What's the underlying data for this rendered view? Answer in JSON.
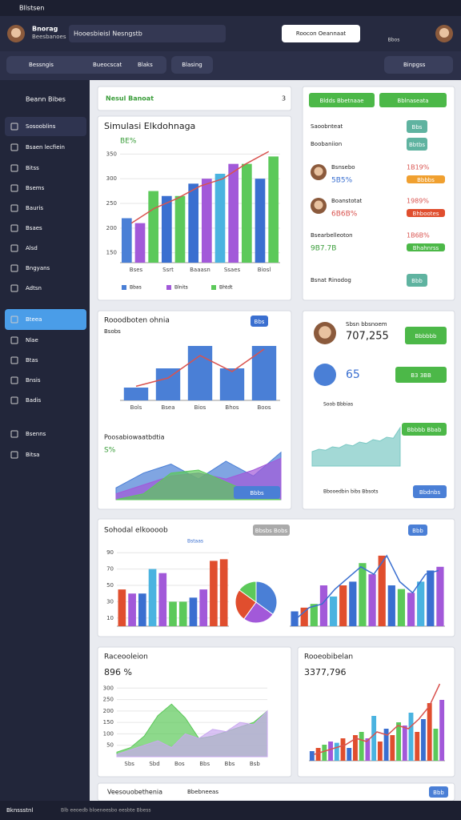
{
  "window": {
    "title": "Bllstsen"
  },
  "header": {
    "user": "Bnorag",
    "user_sub": "Beesbanoes",
    "search": "Hooesbieisl Nesngstb",
    "button": "Roocon Oeannaat",
    "icon_label": "Bbos"
  },
  "toolbar": {
    "tabs": [
      "Bessngis",
      "Bueocscat",
      "Blaks",
      "Blasing"
    ],
    "action": "Binpgss"
  },
  "sidebar": {
    "heading": "Beann Bibes",
    "items": [
      "Sosooblins",
      "Bsaen lecfiein",
      "Bitss",
      "Bsems",
      "Bauris",
      "Bsaes",
      "Alsd",
      "Bngyans",
      "Adtsn",
      "Bteea",
      "Nlae",
      "Btas",
      "Bnsis",
      "Badis",
      "Bsenns",
      "Bitsa"
    ]
  },
  "summary": {
    "title": "Nesul Banoat",
    "count": "3"
  },
  "sim": {
    "title": "Simulasi Elkdohnaga",
    "stat": "BE%",
    "legend": [
      "Bbas",
      "Blnits",
      "Bhtdt"
    ],
    "chart": {
      "type": "bar",
      "values": [
        220,
        210,
        275,
        265,
        265,
        290,
        300,
        310,
        330,
        330,
        300,
        345
      ],
      "colors": [
        "#4a7fd6",
        "#a259d9",
        "#5cc95a",
        "#3a6fd0",
        "#5cc95a",
        "#3a6fd0",
        "#a259d9",
        "#4ab3e0",
        "#a259d9",
        "#5cc95a",
        "#3a6fd0",
        "#5cc95a"
      ],
      "line": [
        210,
        240,
        260,
        285,
        300,
        330,
        355
      ],
      "line_color": "#d9534f",
      "xlabels": [
        "Bses",
        "Ssrt",
        "Baaasn",
        "Ssaes",
        "Biosl"
      ],
      "ylim": [
        130,
        370
      ],
      "yticks": [
        150,
        200,
        250,
        300,
        350
      ]
    }
  },
  "list": {
    "buttons": [
      "Bldds Bbetnaae",
      "Bblnaseata"
    ],
    "rows": [
      {
        "title": "Saoobnteat",
        "tag": "Bbs"
      },
      {
        "title": "Boobaniion",
        "tag": "Bbtbs"
      },
      {
        "title": "Bsnsebo",
        "sub": "5B5%",
        "value": "1B19%",
        "tag": "Bbbbs"
      },
      {
        "title": "Boanstotat",
        "sub": "6B6B%",
        "value": "1989%",
        "tag": "Bhbootes"
      },
      {
        "title": "Bsearbelleoton",
        "sub": "9B7.7B",
        "value": "1B6B%",
        "tag": "Bhahnrss"
      },
      {
        "title": "Bsnat Rinodog",
        "tag": "Bbb"
      }
    ]
  },
  "combo": {
    "title": "Rooodboten ohnia",
    "sub": "Bsobs",
    "button": "Bbs",
    "chart": {
      "type": "bar",
      "values": [
        20,
        50,
        85,
        50,
        85
      ],
      "colors": [
        "#4a7fd6"
      ],
      "line": [
        22,
        35,
        70,
        45,
        80
      ],
      "line_color": "#d9534f",
      "xlabels": [
        "Bols",
        "Bsea",
        "Bios",
        "Bhos",
        "Boos"
      ],
      "ylim": [
        0,
        100
      ]
    },
    "area_title": "Poosabiowaatbdtia",
    "area_stat": "S%",
    "area_button": "Bbbs",
    "area": {
      "type": "area",
      "series": [
        {
          "color": "#4a7fd6",
          "values": [
            20,
            45,
            60,
            35,
            65,
            40,
            80
          ]
        },
        {
          "color": "#a259d9",
          "values": [
            10,
            25,
            40,
            45,
            35,
            50,
            70
          ]
        },
        {
          "color": "#5cc95a",
          "values": [
            0,
            10,
            45,
            50,
            30,
            10,
            0
          ]
        }
      ],
      "ylim": [
        0,
        100
      ]
    }
  },
  "profile": {
    "name": "Sbsn bbsnoem",
    "value": "707,255",
    "button": "Bbbbbb",
    "count": "65",
    "badge": "B3 3BB",
    "caption": "Soob Bbbias",
    "spark_button": "Bbbbb Bbab",
    "note": "Bbooedbin bibs Bbsots",
    "note_button": "Bbdnbs",
    "spark": {
      "type": "area",
      "series": [
        {
          "color": "#7cc9c4",
          "values": [
            30,
            35,
            33,
            40,
            38,
            45,
            42,
            50,
            47,
            55,
            52,
            60,
            58,
            80
          ]
        }
      ],
      "ylim": [
        0,
        100
      ]
    }
  },
  "social": {
    "title": "Sohodal elkoooob",
    "buttons": [
      "Bbsbs Bobs",
      "Bbb"
    ],
    "label": "Bstaas",
    "bars": {
      "type": "bar",
      "values": [
        45,
        40,
        40,
        70,
        65,
        30,
        30,
        35,
        45,
        80,
        82
      ],
      "colors": [
        "#e04e2e",
        "#a259d9",
        "#3a6fd0",
        "#4ab3e0",
        "#a259d9",
        "#5cc95a",
        "#5cc95a",
        "#3a6fd0",
        "#a259d9",
        "#e04e2e",
        "#e04e2e"
      ],
      "ylim": [
        0,
        100
      ],
      "yticks": [
        10,
        30,
        50,
        70,
        90
      ]
    },
    "pie": {
      "type": "pie",
      "values": [
        35,
        25,
        25,
        15
      ],
      "colors": [
        "#4a7fd6",
        "#a259d9",
        "#e04e2e",
        "#5cc95a"
      ]
    },
    "bars2": {
      "type": "bar",
      "values": [
        20,
        25,
        30,
        55,
        40,
        55,
        60,
        85,
        70,
        95,
        55,
        50,
        45,
        60,
        75,
        80
      ],
      "colors": [
        "#3a6fd0",
        "#e04e2e",
        "#5cc95a",
        "#a259d9",
        "#4ab3e0",
        "#e04e2e",
        "#3a6fd0",
        "#5cc95a",
        "#a259d9",
        "#e04e2e",
        "#3a6fd0",
        "#5cc95a",
        "#a259d9",
        "#4ab3e0",
        "#3a6fd0",
        "#a259d9"
      ],
      "line": [
        10,
        25,
        30,
        50,
        65,
        80,
        70,
        95,
        60,
        45,
        70,
        75
      ],
      "line_color": "#3a6fd0",
      "ylim": [
        0,
        110
      ]
    }
  },
  "growth": {
    "title": "Raceooleion",
    "stat": "896 %",
    "chart": {
      "type": "area",
      "series": [
        {
          "color": "#5cc95a",
          "values": [
            20,
            40,
            90,
            180,
            230,
            170,
            80,
            90,
            110,
            130,
            150,
            200
          ]
        },
        {
          "color": "#c9a8ef",
          "values": [
            10,
            30,
            50,
            70,
            40,
            100,
            80,
            120,
            110,
            150,
            140,
            200
          ]
        }
      ],
      "xlabels": [
        "Sbs",
        "Sbd",
        "Bos",
        "Bbs",
        "Bbs",
        "Bsb"
      ],
      "ylim": [
        0,
        350
      ],
      "yticks": [
        50,
        100,
        150,
        200,
        250,
        300
      ]
    }
  },
  "revenue": {
    "title": "Rooeobibelan",
    "stat": "3377,796",
    "chart": {
      "type": "bar",
      "values": [
        15,
        20,
        25,
        30,
        28,
        35,
        20,
        40,
        45,
        35,
        70,
        30,
        50,
        40,
        60,
        55,
        75,
        45,
        65,
        90,
        50,
        95
      ],
      "colors": [
        "#3a6fd0",
        "#e04e2e",
        "#5cc95a",
        "#a259d9",
        "#4ab3e0",
        "#e04e2e"
      ],
      "line": [
        10,
        15,
        20,
        25,
        35,
        30,
        45,
        40,
        55,
        50,
        65,
        85,
        120
      ],
      "line_color": "#d9534f",
      "ylim": [
        0,
        130
      ]
    }
  },
  "bottom": {
    "title": "Veesouobethenia",
    "chip": "Bbebneeas",
    "button": "Bbb"
  },
  "footer": {
    "left": "Bknssstnl",
    "center": "Blb eeoedb bloeneesbo eesbte Bbess"
  }
}
